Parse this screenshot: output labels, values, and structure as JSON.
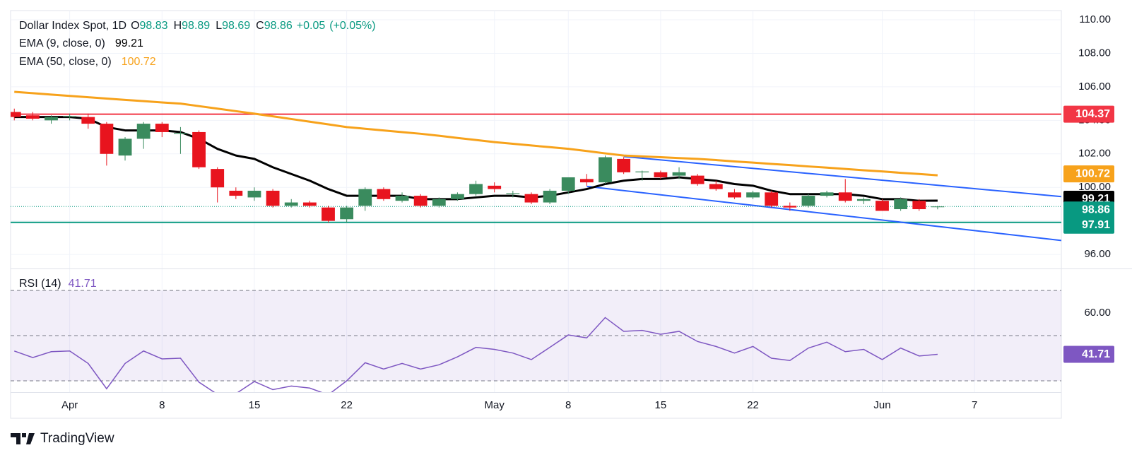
{
  "chart_data": [
    {
      "type": "candlestick",
      "title": "Dollar Index Spot, 1D",
      "stats": [
        {
          "label": "O",
          "value": 98.83
        },
        {
          "label": "H",
          "value": 98.89
        },
        {
          "label": "L",
          "value": 98.69
        },
        {
          "label": "C",
          "value": 98.86
        }
      ],
      "change": "+0.05",
      "change_pct": "(+0.05%)",
      "up_color": "#3a8b5e",
      "down_color": "#e8141e",
      "stat_color": "#089981",
      "open": [
        104.5,
        104.3,
        104.0,
        104.2,
        104.2,
        103.8,
        101.9,
        102.9,
        103.8,
        103.2,
        103.3,
        101.1,
        99.8,
        99.4,
        99.8,
        98.9,
        99.1,
        98.8,
        98.1,
        98.9,
        99.9,
        99.2,
        99.5,
        98.9,
        99.3,
        99.6,
        100.1,
        99.6,
        99.6,
        99.1,
        99.8,
        100.5,
        100.3,
        101.7,
        100.9,
        100.9,
        100.7,
        100.7,
        100.2,
        99.7,
        99.4,
        99.7,
        98.9,
        98.9,
        99.5,
        99.7,
        99.2,
        99.2,
        98.7,
        99.2,
        98.83
      ],
      "high": [
        104.7,
        104.5,
        104.3,
        104.4,
        104.4,
        103.9,
        103.0,
        103.9,
        103.9,
        103.6,
        103.4,
        101.2,
        100.0,
        100.0,
        99.9,
        99.3,
        99.2,
        98.9,
        98.9,
        100.0,
        100.0,
        99.7,
        99.6,
        99.4,
        99.7,
        100.4,
        100.3,
        99.8,
        99.7,
        99.9,
        100.6,
        100.8,
        101.9,
        101.8,
        101.0,
        101.0,
        101.2,
        100.8,
        100.4,
        99.9,
        99.8,
        99.8,
        99.1,
        99.6,
        99.8,
        100.5,
        99.4,
        99.3,
        99.4,
        99.3,
        98.89
      ],
      "low": [
        104.0,
        104.0,
        103.8,
        104.0,
        103.5,
        101.3,
        101.6,
        102.3,
        103.0,
        102.0,
        101.1,
        99.1,
        99.3,
        99.2,
        98.8,
        98.8,
        98.8,
        97.9,
        97.9,
        98.6,
        99.2,
        99.1,
        98.8,
        98.8,
        99.2,
        99.5,
        99.7,
        99.4,
        99.0,
        99.0,
        99.6,
        100.1,
        100.2,
        100.8,
        100.4,
        100.5,
        100.5,
        100.1,
        99.8,
        99.3,
        99.3,
        98.8,
        98.6,
        98.8,
        99.4,
        99.1,
        99.0,
        98.6,
        98.6,
        98.6,
        98.69
      ],
      "close": [
        104.2,
        104.1,
        104.2,
        104.25,
        103.8,
        102.0,
        102.9,
        103.8,
        103.3,
        103.25,
        101.2,
        100.0,
        99.5,
        99.8,
        98.9,
        99.1,
        98.9,
        98.0,
        98.8,
        99.9,
        99.3,
        99.5,
        98.9,
        99.3,
        99.6,
        100.2,
        99.9,
        99.65,
        99.1,
        99.8,
        100.6,
        100.3,
        101.8,
        100.9,
        100.95,
        100.6,
        100.9,
        100.2,
        99.9,
        99.4,
        99.7,
        98.9,
        98.8,
        99.5,
        99.7,
        99.2,
        99.3,
        98.6,
        99.3,
        98.7,
        98.86
      ],
      "series": [
        {
          "name": "EMA (9, close, 0)",
          "color": "#000000",
          "values": [
            104.2,
            104.2,
            104.2,
            104.2,
            104.1,
            103.6,
            103.4,
            103.4,
            103.4,
            103.3,
            102.9,
            102.3,
            101.9,
            101.7,
            101.2,
            100.8,
            100.4,
            99.9,
            99.5,
            99.5,
            99.5,
            99.5,
            99.3,
            99.3,
            99.3,
            99.4,
            99.5,
            99.5,
            99.4,
            99.5,
            99.7,
            99.9,
            100.2,
            100.4,
            100.5,
            100.5,
            100.6,
            100.5,
            100.4,
            100.2,
            100.1,
            99.8,
            99.6,
            99.6,
            99.6,
            99.6,
            99.5,
            99.3,
            99.3,
            99.2,
            99.21
          ]
        },
        {
          "name": "EMA (50, close, 0)",
          "color": "#f7a21b",
          "values": [
            105.7,
            105.62,
            105.54,
            105.46,
            105.38,
            105.3,
            105.22,
            105.15,
            105.07,
            105.0,
            104.85,
            104.7,
            104.55,
            104.4,
            104.24,
            104.08,
            103.92,
            103.76,
            103.6,
            103.5,
            103.4,
            103.3,
            103.2,
            103.08,
            102.95,
            102.83,
            102.7,
            102.6,
            102.5,
            102.4,
            102.3,
            102.17,
            102.03,
            101.9,
            101.85,
            101.8,
            101.75,
            101.7,
            101.63,
            101.55,
            101.48,
            101.4,
            101.33,
            101.25,
            101.18,
            101.1,
            101.02,
            100.95,
            100.87,
            100.8,
            100.72
          ]
        }
      ],
      "hlines": [
        {
          "value": 104.37,
          "color": "#f23645"
        },
        {
          "value": 97.91,
          "color": "#089981"
        }
      ],
      "trendlines": [
        {
          "color": "#2962ff",
          "points": [
            [
              33,
              101.84
            ],
            [
              56.7,
              99.45
            ]
          ]
        },
        {
          "color": "#2962ff",
          "points": [
            [
              31,
              100.06
            ],
            [
              56.7,
              96.83
            ]
          ]
        }
      ],
      "close_line_color": "#089981",
      "xlim": [
        -0.2,
        56.7
      ],
      "xticks": [
        {
          "value": 3,
          "label": "Apr"
        },
        {
          "value": 8,
          "label": "8"
        },
        {
          "value": 13,
          "label": "15"
        },
        {
          "value": 18,
          "label": "22"
        },
        {
          "value": 26,
          "label": "May"
        },
        {
          "value": 30,
          "label": "8"
        },
        {
          "value": 35,
          "label": "15"
        },
        {
          "value": 40,
          "label": "22"
        },
        {
          "value": 47,
          "label": "Jun"
        },
        {
          "value": 52,
          "label": "7"
        }
      ],
      "ylim": [
        95.16,
        110.55
      ],
      "yticks": [
        {
          "value": 96,
          "label": "96.00"
        },
        {
          "value": 98,
          "label": "98.00"
        },
        {
          "value": 100,
          "label": "100.00"
        },
        {
          "value": 102,
          "label": "102.00"
        },
        {
          "value": 104,
          "label": "104.00"
        },
        {
          "value": 106,
          "label": "106.00"
        },
        {
          "value": 108,
          "label": "108.00"
        },
        {
          "value": 110,
          "label": "110.00"
        }
      ],
      "grid": true
    },
    {
      "type": "line",
      "name": "RSI (14)",
      "color": "#7e57c2",
      "values": [
        43.2,
        40.3,
        42.9,
        43.2,
        37.7,
        26.5,
        37.7,
        43.2,
        39.7,
        40.0,
        29.4,
        24.0,
        24.3,
        29.7,
        26.1,
        27.7,
        26.8,
        23.8,
        30.0,
        38.0,
        35.2,
        37.7,
        35.2,
        37.1,
        40.6,
        44.8,
        43.9,
        42.3,
        39.4,
        44.8,
        50.3,
        49.0,
        58.0,
        51.9,
        52.3,
        50.6,
        51.9,
        47.4,
        45.2,
        42.3,
        45.2,
        40.0,
        39.0,
        44.5,
        47.1,
        42.9,
        43.9,
        39.4,
        44.5,
        41.0,
        41.71
      ],
      "levels": [
        70,
        50,
        30
      ],
      "band_color": "#7e57c2",
      "ylim": [
        25,
        79.4
      ],
      "yticks": [
        {
          "value": 60,
          "label": "60.00"
        }
      ]
    }
  ],
  "brand": "TradingView"
}
